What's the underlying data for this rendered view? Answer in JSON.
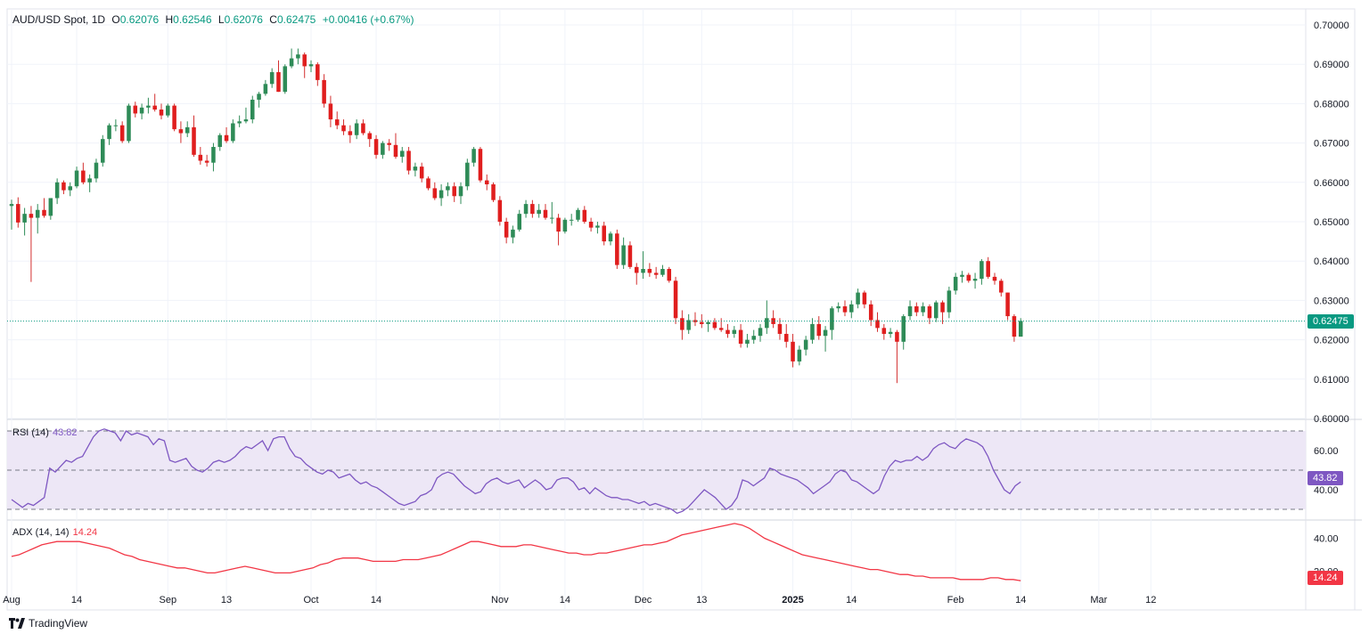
{
  "header": {
    "symbol": "AUD/USD Spot, 1D",
    "open_label": "O",
    "open": "0.62076",
    "high_label": "H",
    "high": "0.62546",
    "low_label": "L",
    "low": "0.62076",
    "close_label": "C",
    "close": "0.62475",
    "change": "+0.00416 (+0.67%)"
  },
  "last_price_tag": "0.62475",
  "rsi_panel": {
    "label": "RSI (14)",
    "value": "43.82",
    "tag": "43.82"
  },
  "adx_panel": {
    "label": "ADX (14, 14)",
    "value": "14.24",
    "tag": "14.24"
  },
  "brand": "TradingView",
  "colors": {
    "up": "#26a69a",
    "up_body": "#2e8b57",
    "down": "#ef5350",
    "down_body": "#e01e1e",
    "rsi_line": "#7e57c2",
    "rsi_band": "#ede7f6",
    "adx_line": "#f23645",
    "last_price": "#089981"
  },
  "chart_data": [
    {
      "type": "candlestick",
      "title": "AUD/USD Spot, 1D",
      "ylim": [
        0.6,
        0.7
      ],
      "y_ticks": [
        "0.70000",
        "0.69000",
        "0.68000",
        "0.67000",
        "0.66000",
        "0.65000",
        "0.64000",
        "0.63000",
        "0.62000",
        "0.61000",
        "0.60000"
      ],
      "x_ticks": [
        "Aug",
        "14",
        "Sep",
        "13",
        "Oct",
        "14",
        "Nov",
        "14",
        "Dec",
        "13",
        "2025",
        "14",
        "Feb",
        "14",
        "Mar",
        "12"
      ],
      "last_price": 0.62475,
      "ohlc": [
        [
          0.654,
          0.6556,
          0.648,
          0.6545
        ],
        [
          0.6545,
          0.6562,
          0.6485,
          0.6498
        ],
        [
          0.6498,
          0.6535,
          0.6465,
          0.652
        ],
        [
          0.652,
          0.654,
          0.6347,
          0.651
        ],
        [
          0.651,
          0.6545,
          0.647,
          0.653
        ],
        [
          0.653,
          0.656,
          0.651,
          0.6515
        ],
        [
          0.6515,
          0.656,
          0.6505,
          0.656
        ],
        [
          0.656,
          0.661,
          0.6545,
          0.66
        ],
        [
          0.66,
          0.6605,
          0.657,
          0.658
        ],
        [
          0.658,
          0.66,
          0.6565,
          0.659
        ],
        [
          0.659,
          0.664,
          0.6585,
          0.663
        ],
        [
          0.663,
          0.665,
          0.6595,
          0.66
        ],
        [
          0.66,
          0.662,
          0.6575,
          0.661
        ],
        [
          0.661,
          0.666,
          0.66,
          0.665
        ],
        [
          0.665,
          0.672,
          0.664,
          0.671
        ],
        [
          0.671,
          0.675,
          0.6695,
          0.6745
        ],
        [
          0.6745,
          0.676,
          0.673,
          0.6745
        ],
        [
          0.6745,
          0.6755,
          0.67,
          0.6705
        ],
        [
          0.6705,
          0.68,
          0.67,
          0.6795
        ],
        [
          0.6795,
          0.6805,
          0.6765,
          0.6775
        ],
        [
          0.6775,
          0.68,
          0.676,
          0.679
        ],
        [
          0.679,
          0.6815,
          0.6775,
          0.6795
        ],
        [
          0.6795,
          0.6825,
          0.678,
          0.6785
        ],
        [
          0.6785,
          0.68,
          0.676,
          0.677
        ],
        [
          0.677,
          0.68,
          0.6765,
          0.6795
        ],
        [
          0.6795,
          0.68,
          0.673,
          0.6735
        ],
        [
          0.6735,
          0.6755,
          0.67,
          0.6725
        ],
        [
          0.6725,
          0.6755,
          0.6715,
          0.674
        ],
        [
          0.674,
          0.677,
          0.6665,
          0.667
        ],
        [
          0.667,
          0.669,
          0.6645,
          0.6655
        ],
        [
          0.6655,
          0.667,
          0.664,
          0.665
        ],
        [
          0.665,
          0.67,
          0.6628,
          0.669
        ],
        [
          0.669,
          0.6725,
          0.668,
          0.672
        ],
        [
          0.672,
          0.674,
          0.67,
          0.6705
        ],
        [
          0.6705,
          0.676,
          0.67,
          0.675
        ],
        [
          0.675,
          0.677,
          0.674,
          0.6755
        ],
        [
          0.6755,
          0.679,
          0.675,
          0.676
        ],
        [
          0.676,
          0.682,
          0.675,
          0.681
        ],
        [
          0.681,
          0.683,
          0.679,
          0.6825
        ],
        [
          0.6825,
          0.686,
          0.682,
          0.685
        ],
        [
          0.685,
          0.689,
          0.684,
          0.688
        ],
        [
          0.688,
          0.691,
          0.683,
          0.683
        ],
        [
          0.683,
          0.69,
          0.6825,
          0.6895
        ],
        [
          0.6895,
          0.694,
          0.689,
          0.6915
        ],
        [
          0.6915,
          0.694,
          0.69,
          0.6925
        ],
        [
          0.6925,
          0.693,
          0.6865,
          0.6895
        ],
        [
          0.6895,
          0.691,
          0.688,
          0.69
        ],
        [
          0.69,
          0.6905,
          0.6845,
          0.686
        ],
        [
          0.686,
          0.6875,
          0.679,
          0.68
        ],
        [
          0.68,
          0.682,
          0.674,
          0.676
        ],
        [
          0.676,
          0.678,
          0.6735,
          0.6745
        ],
        [
          0.6745,
          0.676,
          0.672,
          0.673
        ],
        [
          0.673,
          0.6745,
          0.67,
          0.672
        ],
        [
          0.672,
          0.676,
          0.671,
          0.675
        ],
        [
          0.675,
          0.676,
          0.672,
          0.6725
        ],
        [
          0.6725,
          0.673,
          0.669,
          0.671
        ],
        [
          0.671,
          0.672,
          0.666,
          0.667
        ],
        [
          0.667,
          0.6705,
          0.666,
          0.67
        ],
        [
          0.67,
          0.671,
          0.668,
          0.6695
        ],
        [
          0.6695,
          0.6725,
          0.666,
          0.6665
        ],
        [
          0.6665,
          0.669,
          0.665,
          0.668
        ],
        [
          0.668,
          0.669,
          0.662,
          0.663
        ],
        [
          0.663,
          0.665,
          0.6615,
          0.664
        ],
        [
          0.664,
          0.665,
          0.66,
          0.661
        ],
        [
          0.661,
          0.6615,
          0.658,
          0.6585
        ],
        [
          0.6585,
          0.66,
          0.6555,
          0.656
        ],
        [
          0.656,
          0.6595,
          0.654,
          0.658
        ],
        [
          0.658,
          0.66,
          0.6565,
          0.659
        ],
        [
          0.659,
          0.66,
          0.655,
          0.6565
        ],
        [
          0.6565,
          0.66,
          0.6545,
          0.659
        ],
        [
          0.659,
          0.666,
          0.658,
          0.665
        ],
        [
          0.665,
          0.669,
          0.664,
          0.6685
        ],
        [
          0.6685,
          0.669,
          0.66,
          0.6605
        ],
        [
          0.6605,
          0.662,
          0.658,
          0.6595
        ],
        [
          0.6595,
          0.66,
          0.655,
          0.6555
        ],
        [
          0.6555,
          0.6565,
          0.649,
          0.65
        ],
        [
          0.65,
          0.651,
          0.6445,
          0.646
        ],
        [
          0.646,
          0.649,
          0.6445,
          0.648
        ],
        [
          0.648,
          0.653,
          0.6475,
          0.652
        ],
        [
          0.652,
          0.6555,
          0.651,
          0.6545
        ],
        [
          0.6545,
          0.6555,
          0.651,
          0.652
        ],
        [
          0.652,
          0.6545,
          0.651,
          0.653
        ],
        [
          0.653,
          0.6545,
          0.6505,
          0.651
        ],
        [
          0.651,
          0.655,
          0.6495,
          0.651
        ],
        [
          0.651,
          0.652,
          0.644,
          0.6475
        ],
        [
          0.6475,
          0.651,
          0.647,
          0.6505
        ],
        [
          0.6505,
          0.652,
          0.649,
          0.6505
        ],
        [
          0.6505,
          0.6535,
          0.65,
          0.653
        ],
        [
          0.653,
          0.654,
          0.6495,
          0.65
        ],
        [
          0.65,
          0.651,
          0.6475,
          0.6485
        ],
        [
          0.6485,
          0.65,
          0.647,
          0.649
        ],
        [
          0.649,
          0.65,
          0.644,
          0.645
        ],
        [
          0.645,
          0.6475,
          0.644,
          0.647
        ],
        [
          0.647,
          0.648,
          0.638,
          0.639
        ],
        [
          0.639,
          0.646,
          0.638,
          0.644
        ],
        [
          0.644,
          0.645,
          0.638,
          0.6385
        ],
        [
          0.6385,
          0.6395,
          0.634,
          0.637
        ],
        [
          0.637,
          0.6425,
          0.6355,
          0.638
        ],
        [
          0.638,
          0.6395,
          0.636,
          0.637
        ],
        [
          0.637,
          0.6385,
          0.6355,
          0.6365
        ],
        [
          0.6365,
          0.639,
          0.636,
          0.638
        ],
        [
          0.638,
          0.6385,
          0.6345,
          0.635
        ],
        [
          0.635,
          0.636,
          0.624,
          0.6255
        ],
        [
          0.6255,
          0.6275,
          0.62,
          0.6225
        ],
        [
          0.6225,
          0.6265,
          0.6215,
          0.625
        ],
        [
          0.625,
          0.627,
          0.6235,
          0.6245
        ],
        [
          0.6245,
          0.6265,
          0.623,
          0.624
        ],
        [
          0.624,
          0.625,
          0.622,
          0.6245
        ],
        [
          0.6245,
          0.6255,
          0.6225,
          0.623
        ],
        [
          0.623,
          0.6255,
          0.622,
          0.6225
        ],
        [
          0.6225,
          0.624,
          0.6205,
          0.6215
        ],
        [
          0.6215,
          0.6235,
          0.6205,
          0.6225
        ],
        [
          0.6225,
          0.624,
          0.618,
          0.619
        ],
        [
          0.619,
          0.6215,
          0.618,
          0.62
        ],
        [
          0.62,
          0.6225,
          0.619,
          0.621
        ],
        [
          0.621,
          0.624,
          0.6195,
          0.623
        ],
        [
          0.623,
          0.63,
          0.6215,
          0.6255
        ],
        [
          0.6255,
          0.6275,
          0.623,
          0.624
        ],
        [
          0.624,
          0.6255,
          0.62,
          0.6215
        ],
        [
          0.6215,
          0.624,
          0.618,
          0.6195
        ],
        [
          0.6195,
          0.6215,
          0.613,
          0.6145
        ],
        [
          0.6145,
          0.6185,
          0.6135,
          0.6175
        ],
        [
          0.6175,
          0.621,
          0.616,
          0.62
        ],
        [
          0.62,
          0.6255,
          0.619,
          0.624
        ],
        [
          0.624,
          0.626,
          0.62,
          0.621
        ],
        [
          0.621,
          0.6235,
          0.617,
          0.6225
        ],
        [
          0.6225,
          0.6285,
          0.62,
          0.628
        ],
        [
          0.628,
          0.6295,
          0.627,
          0.6285
        ],
        [
          0.6285,
          0.63,
          0.626,
          0.627
        ],
        [
          0.627,
          0.63,
          0.6255,
          0.629
        ],
        [
          0.629,
          0.633,
          0.628,
          0.632
        ],
        [
          0.632,
          0.6325,
          0.628,
          0.629
        ],
        [
          0.629,
          0.63,
          0.6235,
          0.625
        ],
        [
          0.625,
          0.627,
          0.622,
          0.623
        ],
        [
          0.623,
          0.624,
          0.62,
          0.6215
        ],
        [
          0.6215,
          0.623,
          0.6205,
          0.622
        ],
        [
          0.622,
          0.6225,
          0.609,
          0.6195
        ],
        [
          0.6195,
          0.6265,
          0.6175,
          0.626
        ],
        [
          0.626,
          0.63,
          0.625,
          0.6285
        ],
        [
          0.6285,
          0.6295,
          0.626,
          0.627
        ],
        [
          0.627,
          0.6295,
          0.626,
          0.6285
        ],
        [
          0.6285,
          0.629,
          0.624,
          0.6255
        ],
        [
          0.6255,
          0.63,
          0.6245,
          0.6295
        ],
        [
          0.6295,
          0.63,
          0.624,
          0.627
        ],
        [
          0.627,
          0.6335,
          0.6255,
          0.6325
        ],
        [
          0.6325,
          0.637,
          0.6315,
          0.636
        ],
        [
          0.636,
          0.6375,
          0.6345,
          0.6365
        ],
        [
          0.6365,
          0.637,
          0.6345,
          0.635
        ],
        [
          0.635,
          0.637,
          0.633,
          0.6355
        ],
        [
          0.6355,
          0.6405,
          0.634,
          0.64
        ],
        [
          0.64,
          0.641,
          0.6355,
          0.636
        ],
        [
          0.636,
          0.637,
          0.634,
          0.635
        ],
        [
          0.635,
          0.6355,
          0.631,
          0.632
        ],
        [
          0.632,
          0.632,
          0.625,
          0.626
        ],
        [
          0.626,
          0.6265,
          0.6195,
          0.6208
        ],
        [
          0.6208,
          0.6255,
          0.6208,
          0.6248
        ]
      ]
    },
    {
      "type": "line",
      "title": "RSI (14)",
      "ylim": [
        25,
        75
      ],
      "y_ticks": [
        "60.00",
        "40.00"
      ],
      "bands": [
        70,
        50,
        30
      ],
      "values": [
        35,
        33,
        31,
        33,
        32,
        34,
        36,
        51,
        49,
        52,
        55,
        54,
        56,
        57,
        62,
        67,
        70,
        71,
        70,
        69,
        65,
        70,
        68,
        69,
        68,
        67,
        63,
        66,
        65,
        55,
        54,
        55,
        56,
        52,
        50,
        49,
        51,
        54,
        55,
        54,
        55,
        57,
        60,
        62,
        61,
        63,
        65,
        60,
        66,
        67,
        67,
        61,
        57,
        56,
        53,
        51,
        49,
        48,
        50,
        49,
        46,
        47,
        48,
        45,
        43,
        44,
        42,
        41,
        39,
        37,
        35,
        33,
        32,
        33,
        34,
        37,
        38,
        40,
        46,
        48,
        49,
        48,
        45,
        42,
        40,
        38,
        39,
        43,
        45,
        46,
        44,
        43,
        44,
        45,
        41,
        43,
        45,
        43,
        40,
        41,
        45,
        46,
        46,
        44,
        40,
        41,
        38,
        41,
        39,
        37,
        36,
        36,
        35,
        35,
        34,
        33,
        34,
        32,
        33,
        32,
        31,
        30,
        28,
        29,
        31,
        34,
        37,
        40,
        38,
        36,
        33,
        30,
        32,
        36,
        45,
        44,
        42,
        44,
        46,
        51,
        50,
        48,
        47,
        46,
        45,
        43,
        41,
        38,
        40,
        42,
        44,
        48,
        50,
        49,
        45,
        44,
        42,
        40,
        38,
        40,
        47,
        52,
        55,
        54,
        55,
        55,
        57,
        55,
        57,
        61,
        63,
        64,
        62,
        61,
        64,
        66,
        65,
        64,
        62,
        57,
        50,
        45,
        40,
        38,
        42,
        44
      ]
    },
    {
      "type": "line",
      "title": "ADX (14, 14)",
      "ylim": [
        10,
        50
      ],
      "y_ticks": [
        "40.00",
        "20.00"
      ],
      "values": [
        29,
        30,
        32,
        34,
        36,
        37,
        38,
        38,
        38,
        38,
        37,
        36,
        35,
        34,
        32,
        30,
        29,
        27,
        26,
        25,
        24,
        23,
        22,
        22,
        21,
        20,
        19,
        19,
        20,
        21,
        22,
        23,
        22,
        21,
        20,
        19,
        19,
        19,
        20,
        21,
        22,
        24,
        25,
        27,
        28,
        28,
        28,
        27,
        26,
        26,
        26,
        26,
        27,
        27,
        27,
        28,
        29,
        30,
        32,
        34,
        36,
        38,
        38,
        37,
        36,
        35,
        35,
        35,
        36,
        36,
        35,
        34,
        33,
        32,
        31,
        31,
        30,
        30,
        31,
        31,
        32,
        33,
        34,
        35,
        36,
        36,
        37,
        38,
        40,
        42,
        43,
        44,
        45,
        46,
        47,
        48,
        49,
        48,
        46,
        43,
        40,
        38,
        36,
        34,
        32,
        30,
        29,
        28,
        27,
        26,
        25,
        24,
        23,
        22,
        21,
        21,
        20,
        19,
        18,
        18,
        17,
        17,
        16,
        16,
        16,
        16,
        15,
        15,
        15,
        15,
        16,
        16,
        15,
        15,
        14.24
      ]
    }
  ]
}
